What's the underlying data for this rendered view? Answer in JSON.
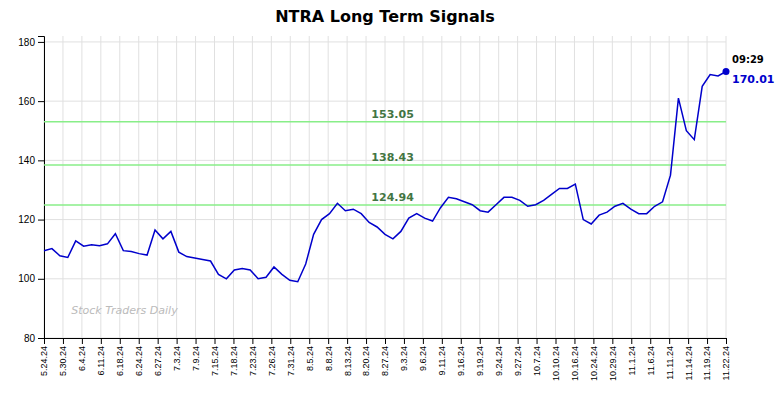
{
  "chart_data": {
    "type": "line",
    "title": "NTRA Long Term Signals",
    "values": [
      109.5,
      110.2,
      107.8,
      107.2,
      112.8,
      111.0,
      111.5,
      111.2,
      111.8,
      115.2,
      109.5,
      109.2,
      108.5,
      108.0,
      116.5,
      113.5,
      116.0,
      109.0,
      107.5,
      107.0,
      106.5,
      106.0,
      101.5,
      100.0,
      103.0,
      103.5,
      103.0,
      100.0,
      100.5,
      104.0,
      101.5,
      99.5,
      99.0,
      105.0,
      115.0,
      120.0,
      122.0,
      125.5,
      123.0,
      123.5,
      122.0,
      119.0,
      117.5,
      115.0,
      113.5,
      116.0,
      120.5,
      122.0,
      120.5,
      119.5,
      124.0,
      127.5,
      127.0,
      126.0,
      125.0,
      123.0,
      122.5,
      125.0,
      127.5,
      127.5,
      126.5,
      124.5,
      125.0,
      126.5,
      128.5,
      130.5,
      130.5,
      132.0,
      120.0,
      118.5,
      121.5,
      122.5,
      124.5,
      125.5,
      123.5,
      122.0,
      122.0,
      124.5,
      126.0,
      135.0,
      161.0,
      150.0,
      147.0,
      165.0,
      169.0,
      168.5,
      170.01
    ],
    "color": "#0000cc",
    "xlim": [
      0,
      86
    ],
    "xticks": [
      {
        "value": 0,
        "label": "5.24.24"
      },
      {
        "value": 2.3889,
        "label": "5.30.24"
      },
      {
        "value": 4.7778,
        "label": "6.4.24"
      },
      {
        "value": 7.1667,
        "label": "6.11.24"
      },
      {
        "value": 9.5556,
        "label": "6.18.24"
      },
      {
        "value": 11.9444,
        "label": "6.24.24"
      },
      {
        "value": 14.3333,
        "label": "6.27.24"
      },
      {
        "value": 16.7222,
        "label": "7.3.24"
      },
      {
        "value": 19.1111,
        "label": "7.9.24"
      },
      {
        "value": 21.5,
        "label": "7.15.24"
      },
      {
        "value": 23.8889,
        "label": "7.18.24"
      },
      {
        "value": 26.2778,
        "label": "7.23.24"
      },
      {
        "value": 28.6667,
        "label": "7.26.24"
      },
      {
        "value": 31.0556,
        "label": "7.31.24"
      },
      {
        "value": 33.4444,
        "label": "8.5.24"
      },
      {
        "value": 35.8333,
        "label": "8.8.24"
      },
      {
        "value": 38.2222,
        "label": "8.13.24"
      },
      {
        "value": 40.6111,
        "label": "8.20.24"
      },
      {
        "value": 43,
        "label": "8.27.24"
      },
      {
        "value": 45.3889,
        "label": "9.3.24"
      },
      {
        "value": 47.7778,
        "label": "9.6.24"
      },
      {
        "value": 50.1667,
        "label": "9.11.24"
      },
      {
        "value": 52.5556,
        "label": "9.16.24"
      },
      {
        "value": 54.9444,
        "label": "9.19.24"
      },
      {
        "value": 57.3333,
        "label": "9.24.24"
      },
      {
        "value": 59.7222,
        "label": "9.27.24"
      },
      {
        "value": 62.1111,
        "label": "10.7.24"
      },
      {
        "value": 64.5,
        "label": "10.10.24"
      },
      {
        "value": 66.8889,
        "label": "10.16.24"
      },
      {
        "value": 69.2778,
        "label": "10.24.24"
      },
      {
        "value": 71.6667,
        "label": "10.29.24"
      },
      {
        "value": 74.0556,
        "label": "11.1.24"
      },
      {
        "value": 76.4444,
        "label": "11.6.24"
      },
      {
        "value": 78.8333,
        "label": "11.11.24"
      },
      {
        "value": 81.2222,
        "label": "11.14.24"
      },
      {
        "value": 83.6111,
        "label": "11.19.24"
      },
      {
        "value": 86,
        "label": "11.22.24"
      }
    ],
    "ylim": [
      80,
      182
    ],
    "yticks": [
      80,
      100,
      120,
      140,
      160,
      180
    ],
    "grid": true,
    "reference_lines": {
      "values": [
        124.94,
        138.43,
        153.05
      ],
      "color": "#88ee88"
    },
    "watermark": "Stock Traders Daily",
    "annotations": [
      "09:29"
    ]
  }
}
